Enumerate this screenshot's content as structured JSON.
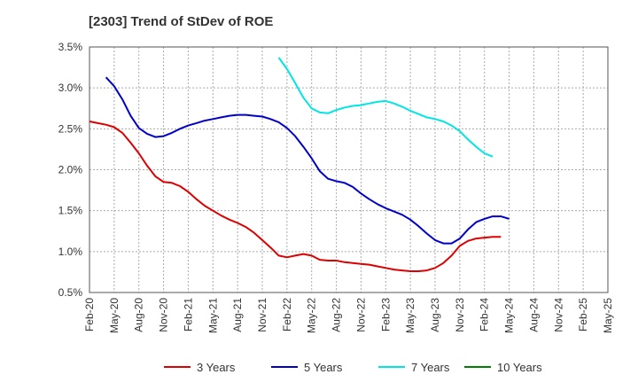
{
  "chart_data": {
    "type": "line",
    "title": "[2303]  Trend of StDev of ROE",
    "xlabel": "",
    "ylabel": "",
    "ylim": [
      0.5,
      3.5
    ],
    "yticks": [
      "0.5%",
      "1.0%",
      "1.5%",
      "2.0%",
      "2.5%",
      "3.0%",
      "3.5%"
    ],
    "ytick_values": [
      0.5,
      1.0,
      1.5,
      2.0,
      2.5,
      3.0,
      3.5
    ],
    "xticks": [
      "Feb-20",
      "May-20",
      "Aug-20",
      "Nov-20",
      "Feb-21",
      "May-21",
      "Aug-21",
      "Nov-21",
      "Feb-22",
      "May-22",
      "Aug-22",
      "Nov-22",
      "Feb-23",
      "May-23",
      "Aug-23",
      "Nov-23",
      "Feb-24",
      "May-24",
      "Aug-24",
      "Nov-24",
      "Feb-25",
      "May-25"
    ],
    "grid": true,
    "legend_position": "bottom",
    "series": [
      {
        "name": "3 Years",
        "color": "#dd0000",
        "points": [
          [
            0,
            2.59
          ],
          [
            1,
            2.57
          ],
          [
            2,
            2.55
          ],
          [
            3,
            2.52
          ],
          [
            4,
            2.45
          ],
          [
            5,
            2.33
          ],
          [
            6,
            2.2
          ],
          [
            7,
            2.05
          ],
          [
            8,
            1.92
          ],
          [
            9,
            1.85
          ],
          [
            10,
            1.84
          ],
          [
            11,
            1.8
          ],
          [
            12,
            1.73
          ],
          [
            13,
            1.64
          ],
          [
            14,
            1.56
          ],
          [
            15,
            1.5
          ],
          [
            16,
            1.44
          ],
          [
            17,
            1.39
          ],
          [
            18,
            1.35
          ],
          [
            19,
            1.3
          ],
          [
            20,
            1.23
          ],
          [
            21,
            1.14
          ],
          [
            22,
            1.05
          ],
          [
            23,
            0.95
          ],
          [
            24,
            0.93
          ],
          [
            25,
            0.95
          ],
          [
            26,
            0.97
          ],
          [
            27,
            0.95
          ],
          [
            28,
            0.9
          ],
          [
            29,
            0.89
          ],
          [
            30,
            0.89
          ],
          [
            31,
            0.87
          ],
          [
            32,
            0.86
          ],
          [
            33,
            0.85
          ],
          [
            34,
            0.84
          ],
          [
            35,
            0.82
          ],
          [
            36,
            0.8
          ],
          [
            37,
            0.78
          ],
          [
            38,
            0.77
          ],
          [
            39,
            0.76
          ],
          [
            40,
            0.76
          ],
          [
            41,
            0.77
          ],
          [
            42,
            0.8
          ],
          [
            43,
            0.86
          ],
          [
            44,
            0.95
          ],
          [
            45,
            1.07
          ],
          [
            46,
            1.13
          ],
          [
            47,
            1.16
          ],
          [
            48,
            1.17
          ],
          [
            49,
            1.18
          ],
          [
            50,
            1.18
          ]
        ]
      },
      {
        "name": "5 Years",
        "color": "#0000cc",
        "points": [
          [
            2,
            3.13
          ],
          [
            3,
            3.02
          ],
          [
            4,
            2.86
          ],
          [
            5,
            2.66
          ],
          [
            6,
            2.51
          ],
          [
            7,
            2.44
          ],
          [
            8,
            2.4
          ],
          [
            9,
            2.41
          ],
          [
            10,
            2.45
          ],
          [
            11,
            2.5
          ],
          [
            12,
            2.54
          ],
          [
            13,
            2.57
          ],
          [
            14,
            2.6
          ],
          [
            15,
            2.62
          ],
          [
            16,
            2.64
          ],
          [
            17,
            2.66
          ],
          [
            18,
            2.67
          ],
          [
            19,
            2.67
          ],
          [
            20,
            2.66
          ],
          [
            21,
            2.65
          ],
          [
            22,
            2.62
          ],
          [
            23,
            2.58
          ],
          [
            24,
            2.51
          ],
          [
            25,
            2.41
          ],
          [
            26,
            2.28
          ],
          [
            27,
            2.14
          ],
          [
            28,
            1.98
          ],
          [
            29,
            1.89
          ],
          [
            30,
            1.86
          ],
          [
            31,
            1.84
          ],
          [
            32,
            1.79
          ],
          [
            33,
            1.71
          ],
          [
            34,
            1.64
          ],
          [
            35,
            1.58
          ],
          [
            36,
            1.53
          ],
          [
            37,
            1.49
          ],
          [
            38,
            1.45
          ],
          [
            39,
            1.39
          ],
          [
            40,
            1.31
          ],
          [
            41,
            1.22
          ],
          [
            42,
            1.14
          ],
          [
            43,
            1.1
          ],
          [
            44,
            1.1
          ],
          [
            45,
            1.16
          ],
          [
            46,
            1.27
          ],
          [
            47,
            1.36
          ],
          [
            48,
            1.4
          ],
          [
            49,
            1.43
          ],
          [
            50,
            1.43
          ],
          [
            51,
            1.4
          ]
        ]
      },
      {
        "name": "7 Years",
        "color": "#00e5e5",
        "points": [
          [
            23,
            3.37
          ],
          [
            24,
            3.23
          ],
          [
            25,
            3.06
          ],
          [
            26,
            2.88
          ],
          [
            27,
            2.75
          ],
          [
            28,
            2.7
          ],
          [
            29,
            2.69
          ],
          [
            30,
            2.73
          ],
          [
            31,
            2.76
          ],
          [
            32,
            2.78
          ],
          [
            33,
            2.79
          ],
          [
            34,
            2.81
          ],
          [
            35,
            2.83
          ],
          [
            36,
            2.84
          ],
          [
            37,
            2.81
          ],
          [
            38,
            2.77
          ],
          [
            39,
            2.72
          ],
          [
            40,
            2.68
          ],
          [
            41,
            2.64
          ],
          [
            42,
            2.62
          ],
          [
            43,
            2.59
          ],
          [
            44,
            2.54
          ],
          [
            45,
            2.47
          ],
          [
            46,
            2.37
          ],
          [
            47,
            2.28
          ],
          [
            48,
            2.2
          ],
          [
            49,
            2.16
          ]
        ]
      },
      {
        "name": "10 Years",
        "color": "#008000",
        "points": []
      }
    ]
  }
}
